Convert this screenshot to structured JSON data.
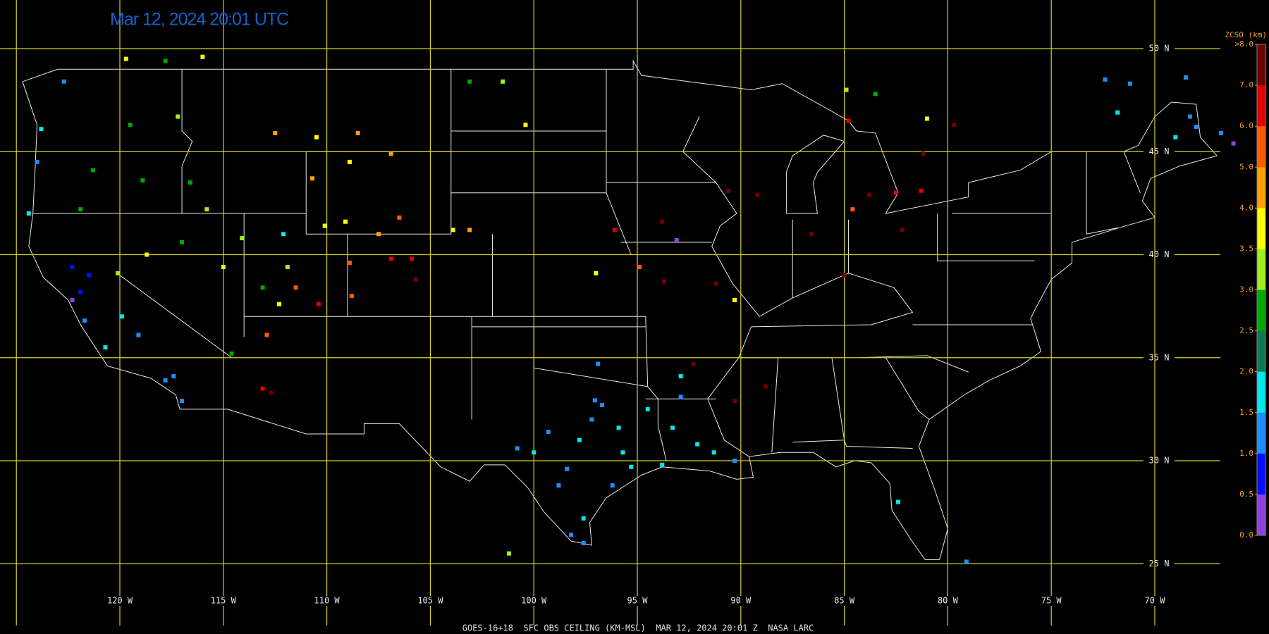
{
  "title": "Mar 12, 2024 20:01 UTC",
  "footer": "GOES-16+18  SFC OBS CEILING (KM-MSL)  MAR 12, 2024 20:01 Z  NASA LARC",
  "grid": {
    "lat_labels": [
      {
        "value": 50,
        "label": "50 N"
      },
      {
        "value": 45,
        "label": "45 N"
      },
      {
        "value": 40,
        "label": "40 N"
      },
      {
        "value": 35,
        "label": "35 N"
      },
      {
        "value": 30,
        "label": "30 N"
      },
      {
        "value": 25,
        "label": "25 N"
      }
    ],
    "lon_labels": [
      {
        "value": -125,
        "label": null
      },
      {
        "value": -120,
        "label": "120 W"
      },
      {
        "value": -115,
        "label": "115 W"
      },
      {
        "value": -110,
        "label": "110 W"
      },
      {
        "value": -105,
        "label": "105 W"
      },
      {
        "value": -100,
        "label": "100 W"
      },
      {
        "value": -95,
        "label": "95 W"
      },
      {
        "value": -90,
        "label": "90 W"
      },
      {
        "value": -85,
        "label": "85 W"
      },
      {
        "value": -80,
        "label": "80 W"
      },
      {
        "value": -75,
        "label": "75 W"
      },
      {
        "value": -70,
        "label": "70 W"
      }
    ]
  },
  "colorbar": {
    "title": "ZCSO (km)",
    "ticks": [
      {
        "value": 8,
        "label": ">8.0"
      },
      {
        "value": 7,
        "label": "7.0"
      },
      {
        "value": 6,
        "label": "6.0"
      },
      {
        "value": 5,
        "label": "5.0"
      },
      {
        "value": 4,
        "label": "4.0"
      },
      {
        "value": 3.5,
        "label": "3.5"
      },
      {
        "value": 3,
        "label": "3.0"
      },
      {
        "value": 2.5,
        "label": "2.5"
      },
      {
        "value": 2,
        "label": "2.0"
      },
      {
        "value": 1.5,
        "label": "1.5"
      },
      {
        "value": 1,
        "label": "1.0"
      },
      {
        "value": 0.5,
        "label": "0.5"
      },
      {
        "value": 0,
        "label": "0.0"
      }
    ],
    "colors": [
      "#6e0000",
      "#e00000",
      "#ff5a00",
      "#ffa000",
      "#ffff00",
      "#a0f020",
      "#00a800",
      "#107850",
      "#00e8e8",
      "#1e8cff",
      "#0010ff",
      "#9040e0"
    ]
  },
  "stations": [
    {
      "lon": -97.05,
      "lat": 32.93,
      "ceiling": 1.2
    },
    {
      "lon": -96.7,
      "lat": 32.7,
      "ceiling": 1.2
    },
    {
      "lon": -97.2,
      "lat": 32.0,
      "ceiling": 1.2
    },
    {
      "lon": -95.9,
      "lat": 31.6,
      "ceiling": 1.8
    },
    {
      "lon": -95.7,
      "lat": 30.4,
      "ceiling": 1.8
    },
    {
      "lon": -95.3,
      "lat": 29.7,
      "ceiling": 1.8
    },
    {
      "lon": -98.4,
      "lat": 29.6,
      "ceiling": 1.2
    },
    {
      "lon": -98.8,
      "lat": 28.8,
      "ceiling": 1.2
    },
    {
      "lon": -97.6,
      "lat": 27.2,
      "ceiling": 1.8
    },
    {
      "lon": -98.2,
      "lat": 26.4,
      "ceiling": 1.2
    },
    {
      "lon": -97.6,
      "lat": 26.0,
      "ceiling": 1.2
    },
    {
      "lon": -100.8,
      "lat": 30.6,
      "ceiling": 1.2
    },
    {
      "lon": -100.0,
      "lat": 30.4,
      "ceiling": 1.8
    },
    {
      "lon": -96.9,
      "lat": 34.7,
      "ceiling": 1.2
    },
    {
      "lon": -94.5,
      "lat": 32.5,
      "ceiling": 1.8
    },
    {
      "lon": -92.9,
      "lat": 34.1,
      "ceiling": 1.8
    },
    {
      "lon": -93.3,
      "lat": 31.6,
      "ceiling": 1.8
    },
    {
      "lon": -92.1,
      "lat": 30.8,
      "ceiling": 1.8
    },
    {
      "lon": -91.3,
      "lat": 30.4,
      "ceiling": 1.8
    },
    {
      "lon": -90.3,
      "lat": 30.0,
      "ceiling": 1.2
    },
    {
      "lon": -93.8,
      "lat": 29.8,
      "ceiling": 1.8
    },
    {
      "lon": -82.4,
      "lat": 28.0,
      "ceiling": 1.8
    },
    {
      "lon": -92.9,
      "lat": 33.1,
      "ceiling": 1.2
    },
    {
      "lon": -97.8,
      "lat": 31.0,
      "ceiling": 1.8
    },
    {
      "lon": -96.2,
      "lat": 28.8,
      "ceiling": 1.2
    },
    {
      "lon": -99.3,
      "lat": 31.4,
      "ceiling": 1.2
    },
    {
      "lon": -124.4,
      "lat": 42.0,
      "ceiling": 1.8
    },
    {
      "lon": -124.0,
      "lat": 44.5,
      "ceiling": 1.2
    },
    {
      "lon": -123.8,
      "lat": 46.1,
      "ceiling": 1.8
    },
    {
      "lon": -122.7,
      "lat": 48.4,
      "ceiling": 1.2
    },
    {
      "lon": -121.5,
      "lat": 39.0,
      "ceiling": 0.8
    },
    {
      "lon": -121.9,
      "lat": 38.2,
      "ceiling": 0.8
    },
    {
      "lon": -122.3,
      "lat": 37.8,
      "ceiling": 0.4
    },
    {
      "lon": -121.7,
      "lat": 36.8,
      "ceiling": 1.2
    },
    {
      "lon": -120.7,
      "lat": 35.5,
      "ceiling": 1.8
    },
    {
      "lon": -117.8,
      "lat": 33.9,
      "ceiling": 1.2
    },
    {
      "lon": -117.4,
      "lat": 34.1,
      "ceiling": 1.2
    },
    {
      "lon": -117.0,
      "lat": 32.9,
      "ceiling": 1.2
    },
    {
      "lon": -119.1,
      "lat": 36.1,
      "ceiling": 1.2
    },
    {
      "lon": -122.3,
      "lat": 39.4,
      "ceiling": 0.7
    },
    {
      "lon": -119.9,
      "lat": 37.0,
      "ceiling": 1.8
    },
    {
      "lon": -119.5,
      "lat": 46.3,
      "ceiling": 2.7
    },
    {
      "lon": -117.2,
      "lat": 46.7,
      "ceiling": 3.3
    },
    {
      "lon": -118.9,
      "lat": 43.6,
      "ceiling": 2.6
    },
    {
      "lon": -116.6,
      "lat": 43.5,
      "ceiling": 2.6
    },
    {
      "lon": -115.8,
      "lat": 42.2,
      "ceiling": 3.2
    },
    {
      "lon": -114.1,
      "lat": 40.8,
      "ceiling": 3.2
    },
    {
      "lon": -112.1,
      "lat": 41.0,
      "ceiling": 1.8
    },
    {
      "lon": -111.9,
      "lat": 39.4,
      "ceiling": 3.2
    },
    {
      "lon": -113.1,
      "lat": 38.4,
      "ceiling": 2.7
    },
    {
      "lon": -112.3,
      "lat": 37.6,
      "ceiling": 3.7
    },
    {
      "lon": -115.0,
      "lat": 39.4,
      "ceiling": 3.7
    },
    {
      "lon": -118.7,
      "lat": 40.0,
      "ceiling": 3.7
    },
    {
      "lon": -117.0,
      "lat": 40.6,
      "ceiling": 2.7
    },
    {
      "lon": -121.9,
      "lat": 42.2,
      "ceiling": 2.7
    },
    {
      "lon": -121.3,
      "lat": 44.1,
      "ceiling": 2.7
    },
    {
      "lon": -117.8,
      "lat": 49.4,
      "ceiling": 2.7
    },
    {
      "lon": -119.7,
      "lat": 49.5,
      "ceiling": 3.7
    },
    {
      "lon": -116.0,
      "lat": 49.6,
      "ceiling": 3.7
    },
    {
      "lon": -101.5,
      "lat": 48.4,
      "ceiling": 3.2
    },
    {
      "lon": -103.1,
      "lat": 48.4,
      "ceiling": 2.7
    },
    {
      "lon": -112.5,
      "lat": 45.9,
      "ceiling": 4.5
    },
    {
      "lon": -110.5,
      "lat": 45.7,
      "ceiling": 3.7
    },
    {
      "lon": -108.5,
      "lat": 45.9,
      "ceiling": 4.5
    },
    {
      "lon": -106.9,
      "lat": 44.9,
      "ceiling": 4.5
    },
    {
      "lon": -108.9,
      "lat": 44.5,
      "ceiling": 3.7
    },
    {
      "lon": -110.7,
      "lat": 43.7,
      "ceiling": 4.5
    },
    {
      "lon": -110.1,
      "lat": 41.4,
      "ceiling": 3.7
    },
    {
      "lon": -109.1,
      "lat": 41.6,
      "ceiling": 3.7
    },
    {
      "lon": -107.5,
      "lat": 41.0,
      "ceiling": 4.5
    },
    {
      "lon": -106.5,
      "lat": 41.8,
      "ceiling": 5.3
    },
    {
      "lon": -108.9,
      "lat": 39.6,
      "ceiling": 5.3
    },
    {
      "lon": -106.9,
      "lat": 39.8,
      "ceiling": 6.3
    },
    {
      "lon": -105.9,
      "lat": 39.8,
      "ceiling": 6.3
    },
    {
      "lon": -105.7,
      "lat": 38.8,
      "ceiling": 7.3
    },
    {
      "lon": -108.8,
      "lat": 38.0,
      "ceiling": 5.3
    },
    {
      "lon": -110.4,
      "lat": 37.6,
      "ceiling": 6.3
    },
    {
      "lon": -111.5,
      "lat": 38.4,
      "ceiling": 5.3
    },
    {
      "lon": -112.9,
      "lat": 36.1,
      "ceiling": 5.3
    },
    {
      "lon": -113.1,
      "lat": 33.5,
      "ceiling": 6.3
    },
    {
      "lon": -112.7,
      "lat": 33.3,
      "ceiling": 7.3
    },
    {
      "lon": -103.9,
      "lat": 41.2,
      "ceiling": 3.7
    },
    {
      "lon": -100.4,
      "lat": 46.3,
      "ceiling": 3.7
    },
    {
      "lon": -103.1,
      "lat": 41.2,
      "ceiling": 4.5
    },
    {
      "lon": -93.8,
      "lat": 41.6,
      "ceiling": 7.3
    },
    {
      "lon": -96.1,
      "lat": 41.2,
      "ceiling": 6.3
    },
    {
      "lon": -93.1,
      "lat": 40.7,
      "ceiling": 0.4
    },
    {
      "lon": -93.7,
      "lat": 38.7,
      "ceiling": 7.3
    },
    {
      "lon": -94.9,
      "lat": 39.4,
      "ceiling": 5.3
    },
    {
      "lon": -97.0,
      "lat": 39.1,
      "ceiling": 3.7
    },
    {
      "lon": -91.2,
      "lat": 38.6,
      "ceiling": 7.3
    },
    {
      "lon": -90.3,
      "lat": 37.8,
      "ceiling": 3.7
    },
    {
      "lon": -92.3,
      "lat": 34.7,
      "ceiling": 7.3
    },
    {
      "lon": -90.3,
      "lat": 32.9,
      "ceiling": 7.3
    },
    {
      "lon": -88.8,
      "lat": 33.6,
      "ceiling": 7.3
    },
    {
      "lon": -90.6,
      "lat": 43.1,
      "ceiling": 7.3
    },
    {
      "lon": -89.2,
      "lat": 42.9,
      "ceiling": 7.3
    },
    {
      "lon": -86.6,
      "lat": 41.0,
      "ceiling": 7.3
    },
    {
      "lon": -84.6,
      "lat": 42.2,
      "ceiling": 5.3
    },
    {
      "lon": -83.8,
      "lat": 42.9,
      "ceiling": 7.3
    },
    {
      "lon": -82.5,
      "lat": 43.0,
      "ceiling": 6.3
    },
    {
      "lon": -81.3,
      "lat": 43.1,
      "ceiling": 6.3
    },
    {
      "lon": -82.2,
      "lat": 41.2,
      "ceiling": 7.3
    },
    {
      "lon": -85.0,
      "lat": 39.0,
      "ceiling": 7.3
    },
    {
      "lon": -84.8,
      "lat": 46.5,
      "ceiling": 6.3
    },
    {
      "lon": -84.9,
      "lat": 48.0,
      "ceiling": 3.2
    },
    {
      "lon": -83.5,
      "lat": 47.8,
      "ceiling": 2.7
    },
    {
      "lon": -81.0,
      "lat": 46.6,
      "ceiling": 3.7
    },
    {
      "lon": -79.7,
      "lat": 46.3,
      "ceiling": 7.3
    },
    {
      "lon": -81.2,
      "lat": 44.9,
      "ceiling": 7.3
    },
    {
      "lon": -72.4,
      "lat": 48.5,
      "ceiling": 1.2
    },
    {
      "lon": -71.2,
      "lat": 48.3,
      "ceiling": 1.2
    },
    {
      "lon": -68.5,
      "lat": 48.6,
      "ceiling": 1.2
    },
    {
      "lon": -71.8,
      "lat": 46.9,
      "ceiling": 1.5
    },
    {
      "lon": -68.3,
      "lat": 46.7,
      "ceiling": 1.2
    },
    {
      "lon": -68.0,
      "lat": 46.2,
      "ceiling": 1.2
    },
    {
      "lon": -69.0,
      "lat": 45.7,
      "ceiling": 1.5
    },
    {
      "lon": -66.8,
      "lat": 45.9,
      "ceiling": 1.2
    },
    {
      "lon": -66.2,
      "lat": 45.4,
      "ceiling": 0.4
    },
    {
      "lon": -79.1,
      "lat": 25.1,
      "ceiling": 1.2
    },
    {
      "lon": -101.2,
      "lat": 25.5,
      "ceiling": 3.2
    },
    {
      "lon": -114.6,
      "lat": 35.2,
      "ceiling": 2.7
    },
    {
      "lon": -120.1,
      "lat": 39.1,
      "ceiling": 3.2
    }
  ]
}
